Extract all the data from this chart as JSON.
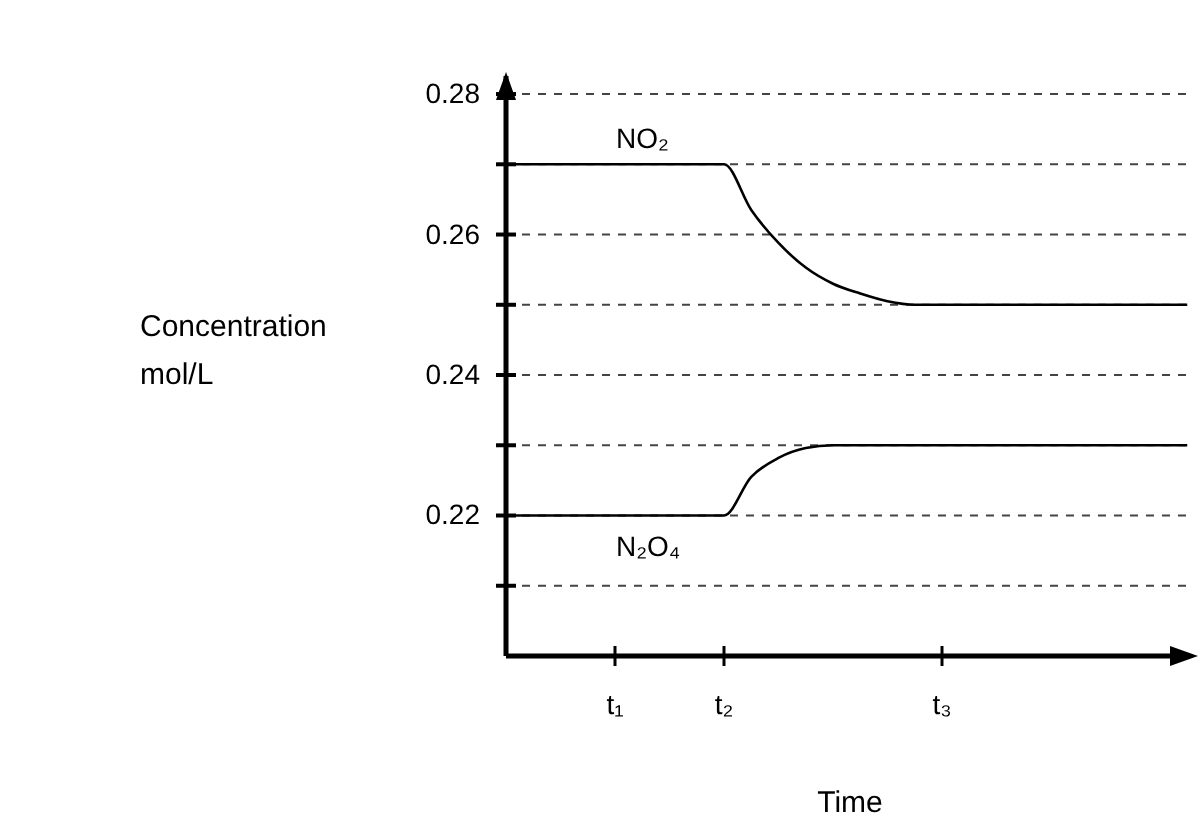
{
  "chart_data": {
    "type": "line",
    "xlabel": "Time",
    "ylabel": "Concentration mol/L",
    "categories": [
      null,
      null,
      null,
      null,
      "t₁",
      null,
      null,
      null,
      "t₂",
      null,
      null,
      null,
      null,
      null,
      null,
      null,
      "t₃",
      null,
      null,
      null,
      null,
      null,
      null,
      null,
      null,
      null
    ],
    "ylim": [
      0.2,
      0.282
    ],
    "yticks": [
      {
        "value": 0.21,
        "label": null
      },
      0.22,
      {
        "value": 0.23,
        "label": null
      },
      0.24,
      {
        "value": 0.25,
        "label": null
      },
      0.26,
      {
        "value": 0.27,
        "label": null
      },
      0.28
    ],
    "grid": "y",
    "marker": "none",
    "line_style": "solid",
    "series": [
      {
        "name": "NO₂",
        "color": "#000000",
        "values": [
          0.27,
          0.27,
          0.27,
          0.27,
          0.27,
          0.27,
          0.27,
          0.27,
          0.27,
          0.2635,
          0.2588,
          0.2553,
          0.253,
          0.2516,
          0.2505,
          0.25,
          0.25,
          0.25,
          0.25,
          0.25,
          0.25,
          0.25,
          0.25,
          0.25,
          0.25,
          0.25
        ]
      },
      {
        "name": "N₂O₄",
        "color": "#000000",
        "values": [
          0.22,
          0.22,
          0.22,
          0.22,
          0.22,
          0.22,
          0.22,
          0.22,
          0.22,
          0.2255,
          0.2282,
          0.2296,
          0.23,
          0.23,
          0.23,
          0.23,
          0.23,
          0.23,
          0.23,
          0.23,
          0.23,
          0.23,
          0.23,
          0.23,
          0.23,
          0.23
        ]
      }
    ]
  }
}
